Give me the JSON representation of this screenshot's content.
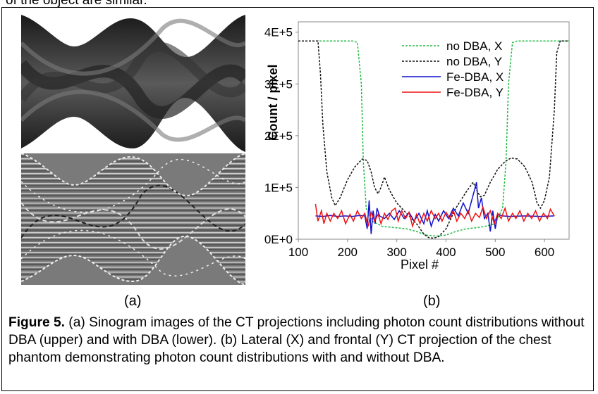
{
  "header_fragment": "of the object are similar.",
  "panel_labels": {
    "a": "(a)",
    "b": "(b)"
  },
  "caption": {
    "label": "Figure 5.",
    "text": " (a) Sinogram images of the CT projections including photon count distributions without DBA (upper) and with DBA (lower). (b) Lateral (X) and frontal (Y) CT projection of the chest phantom demonstrating photon count distributions with and without DBA."
  },
  "chart_data": {
    "type": "line",
    "xlabel": "Pixel #",
    "ylabel": "Count / pixel",
    "xlim": [
      100,
      650
    ],
    "ylim": [
      0,
      420000
    ],
    "xticks": [
      100,
      200,
      300,
      400,
      500,
      600
    ],
    "yticks": [
      0,
      100000,
      200000,
      300000,
      400000
    ],
    "ytick_labels": [
      "0E+0",
      "1E+5",
      "2E+5",
      "3E+5",
      "4E+5"
    ],
    "legend_position": "top-right",
    "series": [
      {
        "name": "no DBA, X",
        "color": "#22bb44",
        "dash": "dotted",
        "points": [
          [
            100,
            383000
          ],
          [
            210,
            383000
          ],
          [
            220,
            380000
          ],
          [
            228,
            300000
          ],
          [
            232,
            150000
          ],
          [
            238,
            60000
          ],
          [
            250,
            35000
          ],
          [
            270,
            25000
          ],
          [
            300,
            22000
          ],
          [
            320,
            20000
          ],
          [
            340,
            15000
          ],
          [
            360,
            8000
          ],
          [
            380,
            6000
          ],
          [
            400,
            8000
          ],
          [
            420,
            15000
          ],
          [
            440,
            20000
          ],
          [
            460,
            22000
          ],
          [
            480,
            25000
          ],
          [
            500,
            30000
          ],
          [
            515,
            60000
          ],
          [
            522,
            150000
          ],
          [
            527,
            300000
          ],
          [
            535,
            380000
          ],
          [
            545,
            383000
          ],
          [
            650,
            383000
          ]
        ]
      },
      {
        "name": "no DBA, Y",
        "color": "#111111",
        "dash": "dotted",
        "points": [
          [
            100,
            383000
          ],
          [
            140,
            383000
          ],
          [
            145,
            320000
          ],
          [
            150,
            220000
          ],
          [
            158,
            130000
          ],
          [
            168,
            80000
          ],
          [
            175,
            65000
          ],
          [
            185,
            80000
          ],
          [
            200,
            115000
          ],
          [
            215,
            140000
          ],
          [
            230,
            155000
          ],
          [
            240,
            152000
          ],
          [
            248,
            130000
          ],
          [
            255,
            100000
          ],
          [
            262,
            88000
          ],
          [
            268,
            100000
          ],
          [
            275,
            120000
          ],
          [
            285,
            95000
          ],
          [
            300,
            70000
          ],
          [
            320,
            50000
          ],
          [
            340,
            30000
          ],
          [
            355,
            10000
          ],
          [
            365,
            3000
          ],
          [
            375,
            2000
          ],
          [
            385,
            5000
          ],
          [
            400,
            20000
          ],
          [
            420,
            60000
          ],
          [
            440,
            90000
          ],
          [
            455,
            110000
          ],
          [
            465,
            90000
          ],
          [
            470,
            82000
          ],
          [
            478,
            85000
          ],
          [
            490,
            110000
          ],
          [
            505,
            135000
          ],
          [
            520,
            150000
          ],
          [
            532,
            157000
          ],
          [
            545,
            155000
          ],
          [
            560,
            140000
          ],
          [
            575,
            110000
          ],
          [
            585,
            70000
          ],
          [
            592,
            60000
          ],
          [
            600,
            75000
          ],
          [
            610,
            120000
          ],
          [
            620,
            250000
          ],
          [
            625,
            360000
          ],
          [
            632,
            383000
          ],
          [
            650,
            383000
          ]
        ]
      },
      {
        "name": "Fe-DBA, X",
        "color": "#1111cc",
        "dash": "solid",
        "points": [
          [
            135,
            45000
          ],
          [
            150,
            44000
          ],
          [
            165,
            46000
          ],
          [
            180,
            44000
          ],
          [
            195,
            45000
          ],
          [
            210,
            44000
          ],
          [
            225,
            46000
          ],
          [
            235,
            45000
          ],
          [
            240,
            20000
          ],
          [
            244,
            75000
          ],
          [
            248,
            10000
          ],
          [
            252,
            55000
          ],
          [
            256,
            30000
          ],
          [
            260,
            60000
          ],
          [
            265,
            45000
          ],
          [
            275,
            40000
          ],
          [
            285,
            50000
          ],
          [
            295,
            38000
          ],
          [
            305,
            55000
          ],
          [
            315,
            40000
          ],
          [
            325,
            52000
          ],
          [
            335,
            35000
          ],
          [
            345,
            50000
          ],
          [
            355,
            30000
          ],
          [
            362,
            55000
          ],
          [
            370,
            25000
          ],
          [
            378,
            48000
          ],
          [
            385,
            35000
          ],
          [
            395,
            55000
          ],
          [
            405,
            40000
          ],
          [
            415,
            60000
          ],
          [
            425,
            45000
          ],
          [
            435,
            70000
          ],
          [
            445,
            50000
          ],
          [
            455,
            85000
          ],
          [
            462,
            110000
          ],
          [
            466,
            60000
          ],
          [
            472,
            80000
          ],
          [
            478,
            40000
          ],
          [
            485,
            50000
          ],
          [
            490,
            15000
          ],
          [
            495,
            55000
          ],
          [
            500,
            20000
          ],
          [
            505,
            48000
          ],
          [
            515,
            45000
          ],
          [
            530,
            44000
          ],
          [
            560,
            45000
          ],
          [
            590,
            44000
          ],
          [
            620,
            45000
          ]
        ]
      },
      {
        "name": "Fe-DBA, Y",
        "color": "#ee1111",
        "dash": "solid",
        "points": [
          [
            135,
            68000
          ],
          [
            140,
            35000
          ],
          [
            147,
            55000
          ],
          [
            152,
            30000
          ],
          [
            158,
            50000
          ],
          [
            165,
            35000
          ],
          [
            172,
            50000
          ],
          [
            180,
            40000
          ],
          [
            188,
            55000
          ],
          [
            196,
            30000
          ],
          [
            205,
            48000
          ],
          [
            212,
            35000
          ],
          [
            220,
            55000
          ],
          [
            228,
            40000
          ],
          [
            235,
            50000
          ],
          [
            242,
            25000
          ],
          [
            248,
            52000
          ],
          [
            255,
            35000
          ],
          [
            262,
            48000
          ],
          [
            268,
            30000
          ],
          [
            275,
            50000
          ],
          [
            282,
            38000
          ],
          [
            290,
            55000
          ],
          [
            297,
            60000
          ],
          [
            303,
            35000
          ],
          [
            310,
            55000
          ],
          [
            318,
            40000
          ],
          [
            325,
            52000
          ],
          [
            332,
            25000
          ],
          [
            340,
            48000
          ],
          [
            347,
            30000
          ],
          [
            355,
            50000
          ],
          [
            362,
            35000
          ],
          [
            370,
            55000
          ],
          [
            378,
            40000
          ],
          [
            385,
            50000
          ],
          [
            392,
            35000
          ],
          [
            400,
            52000
          ],
          [
            408,
            40000
          ],
          [
            415,
            55000
          ],
          [
            422,
            35000
          ],
          [
            430,
            50000
          ],
          [
            438,
            40000
          ],
          [
            445,
            55000
          ],
          [
            452,
            35000
          ],
          [
            460,
            50000
          ],
          [
            468,
            42000
          ],
          [
            475,
            62000
          ],
          [
            482,
            40000
          ],
          [
            490,
            55000
          ],
          [
            498,
            30000
          ],
          [
            505,
            50000
          ],
          [
            512,
            40000
          ],
          [
            520,
            60000
          ],
          [
            527,
            35000
          ],
          [
            535,
            50000
          ],
          [
            542,
            40000
          ],
          [
            550,
            55000
          ],
          [
            558,
            35000
          ],
          [
            566,
            50000
          ],
          [
            574,
            40000
          ],
          [
            582,
            55000
          ],
          [
            590,
            35000
          ],
          [
            598,
            50000
          ],
          [
            606,
            40000
          ],
          [
            612,
            58000
          ],
          [
            620,
            45000
          ]
        ]
      }
    ]
  }
}
